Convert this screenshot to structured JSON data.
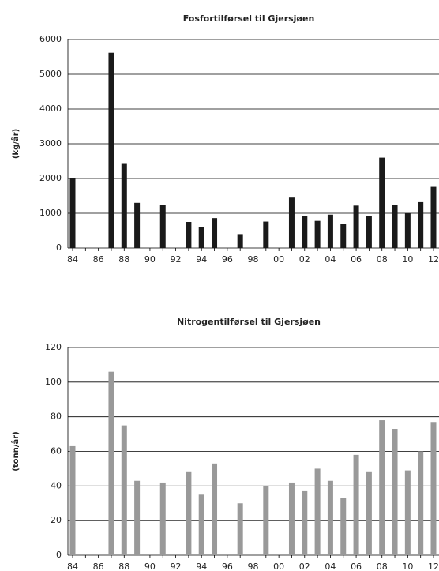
{
  "chart_data": [
    {
      "type": "bar",
      "title": "Fosfortilførsel til Gjersjøen",
      "y_label": "(kg/år)",
      "categories": [
        "84",
        null,
        "86",
        null,
        "88",
        null,
        "90",
        null,
        "92",
        null,
        "94",
        null,
        "96",
        null,
        "98",
        null,
        "00",
        null,
        "02",
        null,
        "04",
        null,
        "06",
        null,
        "08",
        null,
        "10",
        null,
        "12"
      ],
      "values": [
        2000,
        null,
        null,
        5620,
        2420,
        1300,
        null,
        1250,
        null,
        750,
        600,
        860,
        null,
        400,
        null,
        760,
        null,
        1450,
        920,
        780,
        960,
        700,
        1220,
        930,
        2600,
        1250,
        1000,
        1320,
        1760
      ],
      "color": "#1a1a1a",
      "ylim": [
        0,
        6000
      ],
      "yticks": [
        0,
        1000,
        2000,
        3000,
        4000,
        5000,
        6000
      ],
      "grid": true
    },
    {
      "type": "bar",
      "title": "Nitrogentilførsel til Gjersjøen",
      "y_label": "(tonn/år)",
      "categories": [
        "84",
        null,
        "86",
        null,
        "88",
        null,
        "90",
        null,
        "92",
        null,
        "94",
        null,
        "96",
        null,
        "98",
        null,
        "00",
        null,
        "02",
        null,
        "04",
        null,
        "06",
        null,
        "08",
        null,
        "10",
        null,
        "12"
      ],
      "values": [
        63,
        null,
        null,
        106,
        75,
        43,
        null,
        42,
        null,
        48,
        35,
        53,
        null,
        30,
        null,
        40,
        null,
        42,
        37,
        50,
        43,
        33,
        58,
        48,
        78,
        73,
        49,
        60,
        77
      ],
      "color": "#999999",
      "ylim": [
        0,
        120
      ],
      "yticks": [
        0,
        20,
        40,
        60,
        80,
        100,
        120
      ],
      "grid": true
    }
  ]
}
